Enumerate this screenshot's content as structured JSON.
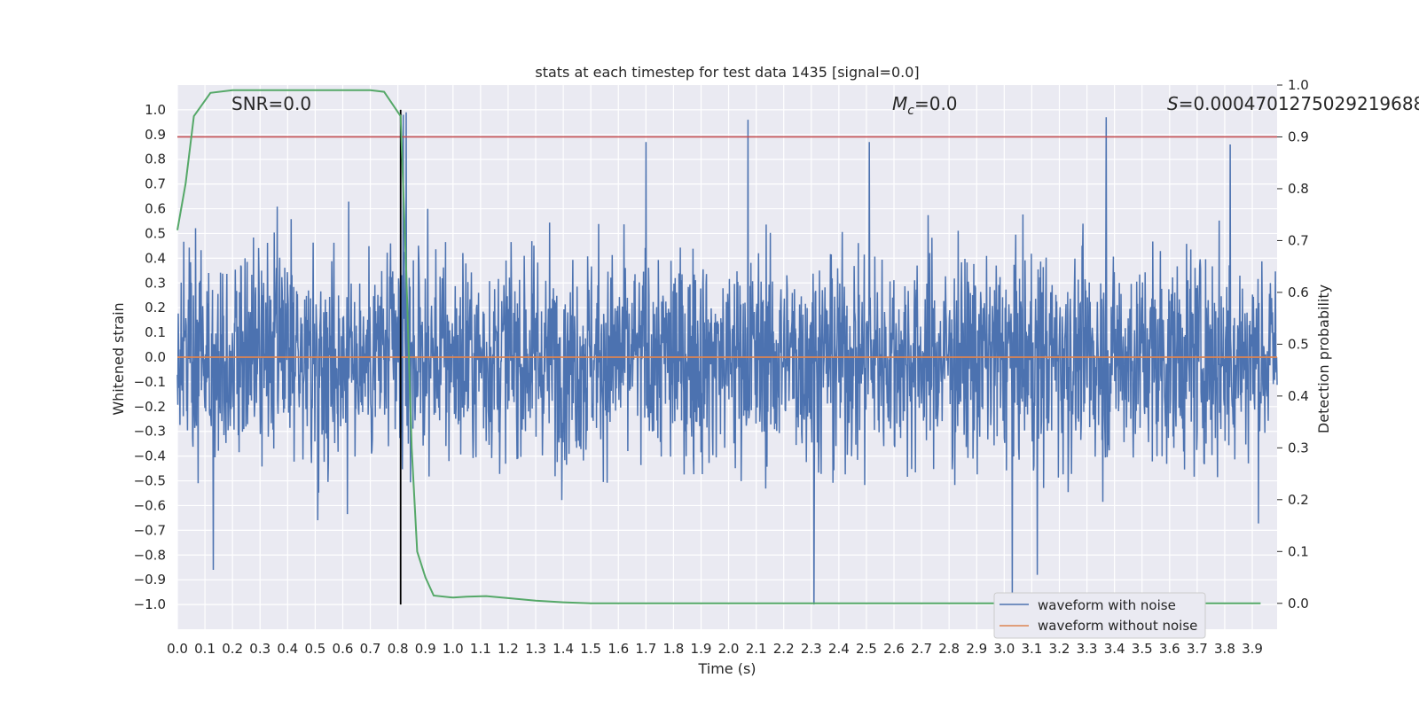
{
  "chart_data": {
    "type": "line",
    "title": "stats at each timestep for test data 1435 [signal=0.0]",
    "xlabel": "Time (s)",
    "ylabel": "Whitened strain",
    "y2label": "Detection probability",
    "xlim": [
      0.0,
      3.99
    ],
    "ylim": [
      -1.1,
      1.1
    ],
    "y2lim": [
      -0.05,
      1.0
    ],
    "grid": true,
    "legend_position": "lower-right",
    "xticks": [
      "0.0",
      "0.1",
      "0.2",
      "0.3",
      "0.4",
      "0.5",
      "0.6",
      "0.7",
      "0.8",
      "0.9",
      "1.0",
      "1.1",
      "1.2",
      "1.3",
      "1.4",
      "1.5",
      "1.6",
      "1.7",
      "1.8",
      "1.9",
      "2.0",
      "2.1",
      "2.2",
      "2.3",
      "2.4",
      "2.5",
      "2.6",
      "2.7",
      "2.8",
      "2.9",
      "3.0",
      "3.1",
      "3.2",
      "3.3",
      "3.4",
      "3.5",
      "3.6",
      "3.7",
      "3.8",
      "3.9"
    ],
    "yticks": [
      "1.0",
      "0.9",
      "0.8",
      "0.7",
      "0.6",
      "0.5",
      "0.4",
      "0.3",
      "0.2",
      "0.1",
      "0.0",
      "−0.1",
      "−0.2",
      "−0.3",
      "−0.4",
      "−0.5",
      "−0.6",
      "−0.7",
      "−0.8",
      "−0.9",
      "−1.0"
    ],
    "y2ticks": [
      "1.0",
      "0.9",
      "0.8",
      "0.7",
      "0.6",
      "0.5",
      "0.4",
      "0.3",
      "0.2",
      "0.1",
      "0.0"
    ],
    "annotations": {
      "snr": "SNR=0.0",
      "mc_symbol": "M",
      "mc_sub": "c",
      "mc_value": "=0.0",
      "s_symbol": "S",
      "s_value": "=0.0004701275029219688"
    },
    "threshold": 0.9,
    "vline_x": 0.81,
    "series": [
      {
        "name": "waveform with noise",
        "color": "#4c72b0",
        "description": "whitened noisy strain, fluctuates roughly between -1.0 and 1.0 with mean near 0",
        "amplitude_range": [
          -1.0,
          1.0
        ],
        "peaks": [
          {
            "x": 0.83,
            "y": 0.99
          },
          {
            "x": 0.82,
            "y": 0.98
          },
          {
            "x": 1.7,
            "y": 0.87
          },
          {
            "x": 2.07,
            "y": 0.96
          },
          {
            "x": 2.51,
            "y": 0.87
          },
          {
            "x": 3.37,
            "y": 0.97
          },
          {
            "x": 3.82,
            "y": 0.86
          },
          {
            "x": 2.31,
            "y": -1.0
          },
          {
            "x": 3.03,
            "y": -0.99
          },
          {
            "x": 3.12,
            "y": -0.88
          },
          {
            "x": 0.13,
            "y": -0.86
          }
        ]
      },
      {
        "name": "waveform without noise",
        "color": "#dd8452",
        "x": [
          0.0,
          3.99
        ],
        "y": [
          0.0,
          0.0
        ]
      },
      {
        "name": "detection probability",
        "axis": "y2",
        "color": "#55a868",
        "x": [
          0.0,
          0.03,
          0.06,
          0.12,
          0.2,
          0.3,
          0.4,
          0.5,
          0.6,
          0.7,
          0.75,
          0.81,
          0.83,
          0.85,
          0.87,
          0.9,
          0.93,
          1.0,
          1.05,
          1.12,
          1.2,
          1.3,
          1.4,
          1.5,
          1.7,
          2.0,
          2.5,
          3.0,
          3.5,
          3.93
        ],
        "y": [
          0.72,
          0.81,
          0.94,
          0.985,
          0.99,
          0.99,
          0.99,
          0.99,
          0.99,
          0.99,
          0.987,
          0.94,
          0.65,
          0.3,
          0.1,
          0.05,
          0.015,
          0.011,
          0.013,
          0.014,
          0.01,
          0.005,
          0.002,
          0.0,
          0.0,
          0.0,
          0.0,
          0.0,
          0.0,
          0.0
        ]
      }
    ],
    "legend": [
      "waveform with noise",
      "waveform without noise"
    ],
    "colors": {
      "plot_bg": "#eaeaf2",
      "grid": "#ffffff",
      "threshold": "#c44e52",
      "vline": "#000000"
    }
  }
}
